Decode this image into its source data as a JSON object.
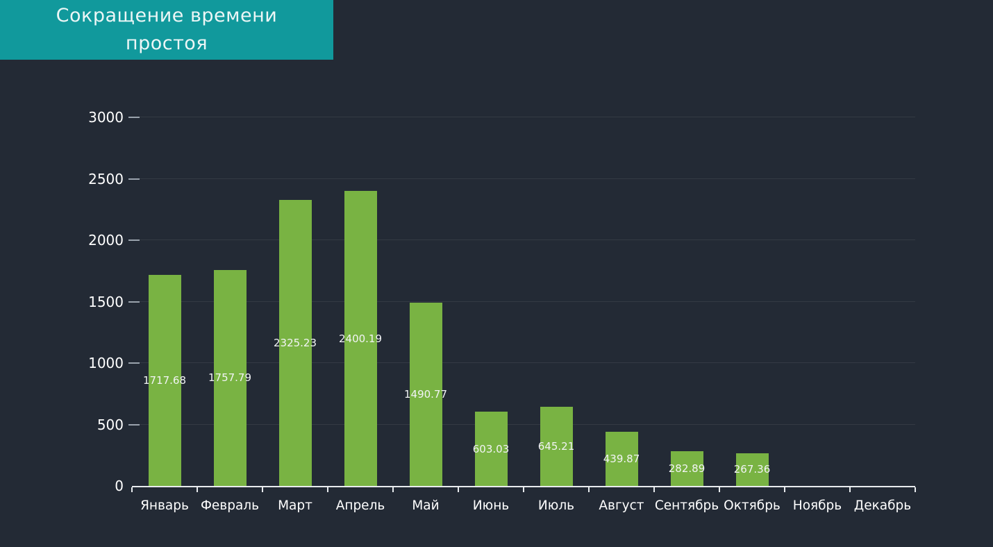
{
  "title": {
    "line1": "Сокращение времени",
    "line2": "простоя"
  },
  "colors": {
    "background": "#232a35",
    "banner": "#11999c",
    "bar": "#79b343",
    "axis": "#e8ebee",
    "gridline": "rgba(255,255,255,0.08)",
    "tick": "#9aa3ad",
    "text": "#ffffff"
  },
  "chart_data": {
    "type": "bar",
    "title": "Сокращение времени простоя",
    "categories": [
      "Январь",
      "Февраль",
      "Март",
      "Апрель",
      "Май",
      "Июнь",
      "Июль",
      "Август",
      "Сентябрь",
      "Октябрь",
      "Ноябрь",
      "Декабрь"
    ],
    "values": [
      1717.68,
      1757.79,
      2325.23,
      2400.19,
      1490.77,
      603.03,
      645.21,
      439.87,
      282.89,
      267.36,
      0,
      0
    ],
    "value_labels": [
      "1717.68",
      "1757.79",
      "2325.23",
      "2400.19",
      "1490.77",
      "603.03",
      "645.21",
      "439.87",
      "282.89",
      "267.36",
      "",
      ""
    ],
    "xlabel": "",
    "ylabel": "",
    "ylim": [
      0,
      3000
    ],
    "yticks": [
      0,
      500,
      1000,
      1500,
      2000,
      2500,
      3000
    ],
    "grid": "horizontal",
    "legend": "none",
    "value_labels_position": "inside-center"
  }
}
